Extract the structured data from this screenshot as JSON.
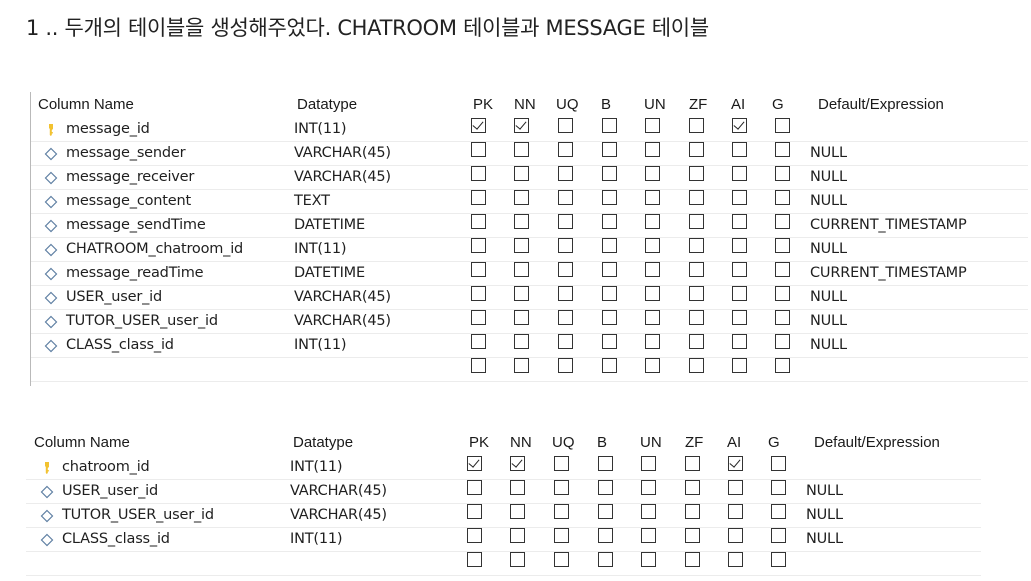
{
  "heading": "1 .. 두개의 테이블을 생성해주었다. CHATROOM 테이블과 MESSAGE 테이블",
  "columns": [
    "Column Name",
    "Datatype",
    "PK",
    "NN",
    "UQ",
    "B",
    "UN",
    "ZF",
    "AI",
    "G",
    "Default/Expression"
  ],
  "colors": {
    "key_icon": "#f2c230",
    "diamond_icon": "#5f7fa3",
    "checkbox_border": "#333333",
    "text": "#1f1f1f"
  },
  "tables": [
    {
      "rows": [
        {
          "name": "message_id",
          "datatype": "INT(11)",
          "icon": "key-icon",
          "flags": [
            true,
            true,
            false,
            false,
            false,
            false,
            true,
            false
          ],
          "default": ""
        },
        {
          "name": "message_sender",
          "datatype": "VARCHAR(45)",
          "icon": "diamond-icon",
          "flags": [
            false,
            false,
            false,
            false,
            false,
            false,
            false,
            false
          ],
          "default": "NULL"
        },
        {
          "name": "message_receiver",
          "datatype": "VARCHAR(45)",
          "icon": "diamond-icon",
          "flags": [
            false,
            false,
            false,
            false,
            false,
            false,
            false,
            false
          ],
          "default": "NULL"
        },
        {
          "name": "message_content",
          "datatype": "TEXT",
          "icon": "diamond-icon",
          "flags": [
            false,
            false,
            false,
            false,
            false,
            false,
            false,
            false
          ],
          "default": "NULL"
        },
        {
          "name": "message_sendTime",
          "datatype": "DATETIME",
          "icon": "diamond-icon",
          "flags": [
            false,
            false,
            false,
            false,
            false,
            false,
            false,
            false
          ],
          "default": "CURRENT_TIMESTAMP"
        },
        {
          "name": "CHATROOM_chatroom_id",
          "datatype": "INT(11)",
          "icon": "diamond-icon",
          "flags": [
            false,
            false,
            false,
            false,
            false,
            false,
            false,
            false
          ],
          "default": "NULL"
        },
        {
          "name": "message_readTime",
          "datatype": "DATETIME",
          "icon": "diamond-icon",
          "flags": [
            false,
            false,
            false,
            false,
            false,
            false,
            false,
            false
          ],
          "default": "CURRENT_TIMESTAMP"
        },
        {
          "name": "USER_user_id",
          "datatype": "VARCHAR(45)",
          "icon": "diamond-icon",
          "flags": [
            false,
            false,
            false,
            false,
            false,
            false,
            false,
            false
          ],
          "default": "NULL"
        },
        {
          "name": "TUTOR_USER_user_id",
          "datatype": "VARCHAR(45)",
          "icon": "diamond-icon",
          "flags": [
            false,
            false,
            false,
            false,
            false,
            false,
            false,
            false
          ],
          "default": "NULL"
        },
        {
          "name": "CLASS_class_id",
          "datatype": "INT(11)",
          "icon": "diamond-icon",
          "flags": [
            false,
            false,
            false,
            false,
            false,
            false,
            false,
            false
          ],
          "default": "NULL"
        },
        {
          "name": "",
          "datatype": "",
          "icon": "",
          "flags": [
            false,
            false,
            false,
            false,
            false,
            false,
            false,
            false
          ],
          "default": ""
        }
      ]
    },
    {
      "rows": [
        {
          "name": "chatroom_id",
          "datatype": "INT(11)",
          "icon": "key-icon",
          "flags": [
            true,
            true,
            false,
            false,
            false,
            false,
            true,
            false
          ],
          "default": ""
        },
        {
          "name": "USER_user_id",
          "datatype": "VARCHAR(45)",
          "icon": "diamond-icon",
          "flags": [
            false,
            false,
            false,
            false,
            false,
            false,
            false,
            false
          ],
          "default": "NULL"
        },
        {
          "name": "TUTOR_USER_user_id",
          "datatype": "VARCHAR(45)",
          "icon": "diamond-icon",
          "flags": [
            false,
            false,
            false,
            false,
            false,
            false,
            false,
            false
          ],
          "default": "NULL"
        },
        {
          "name": "CLASS_class_id",
          "datatype": "INT(11)",
          "icon": "diamond-icon",
          "flags": [
            false,
            false,
            false,
            false,
            false,
            false,
            false,
            false
          ],
          "default": "NULL"
        },
        {
          "name": "",
          "datatype": "",
          "icon": "",
          "flags": [
            false,
            false,
            false,
            false,
            false,
            false,
            false,
            false
          ],
          "default": ""
        }
      ]
    }
  ]
}
